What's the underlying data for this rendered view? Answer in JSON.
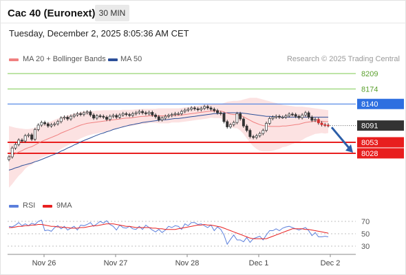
{
  "header": {
    "title": "Cac 40 (Euronext)",
    "interval": "30 MIN"
  },
  "timestamp": "Tuesday, December 2, 2025 8:05:36 AM CET",
  "legend": {
    "ma20": {
      "label": "MA 20 + Bollinger Bands",
      "color": "#f08080"
    },
    "ma50": {
      "label": "MA 50",
      "color": "#2c4f99"
    },
    "rsi": {
      "label": "RSI",
      "color": "#5b7fdc"
    },
    "nine_ma": {
      "label": "9MA",
      "color": "#e82020"
    }
  },
  "credit": "Research © 2025 Trading Central",
  "chart_data": [
    {
      "type": "line",
      "x_tick_labels": [
        "Nov 26",
        "Nov 27",
        "Nov 28",
        "Dec 1",
        "Dec 2"
      ],
      "levels": [
        {
          "value": 8209,
          "label": "8209",
          "kind": "resistance",
          "color": "#7dc94f"
        },
        {
          "value": 8174,
          "label": "8174",
          "kind": "resistance",
          "color": "#7dc94f"
        },
        {
          "value": 8140,
          "label": "8140",
          "kind": "pivot",
          "color": "#2e6fe0"
        },
        {
          "value": 8091,
          "label": "8091",
          "kind": "last",
          "color": "#333333"
        },
        {
          "value": 8053,
          "label": "8053",
          "kind": "support",
          "color": "#e81e1e"
        },
        {
          "value": 8028,
          "label": "8028",
          "kind": "support",
          "color": "#e81e1e"
        }
      ],
      "forecast": {
        "direction": "down",
        "from": 8087,
        "to": 8028,
        "color": "#2c5ea8"
      },
      "close": [
        8020,
        8040,
        8048,
        8058,
        8056,
        8068,
        8070,
        8060,
        8082,
        8092,
        8098,
        8095,
        8090,
        8093,
        8095,
        8100,
        8108,
        8110,
        8106,
        8112,
        8115,
        8118,
        8116,
        8120,
        8122,
        8115,
        8108,
        8113,
        8112,
        8110,
        8105,
        8112,
        8114,
        8110,
        8115,
        8118,
        8116,
        8114,
        8118,
        8120,
        8123,
        8120,
        8118,
        8121,
        8115,
        8111,
        8104,
        8108,
        8112,
        8114,
        8116,
        8118,
        8118,
        8123,
        8126,
        8128,
        8131,
        8129,
        8127,
        8130,
        8134,
        8131,
        8128,
        8125,
        8120,
        8118,
        8100,
        8088,
        8093,
        8098,
        8118,
        8106,
        8090,
        8080,
        8066,
        8064,
        8068,
        8073,
        8080,
        8096,
        8107,
        8110,
        8112,
        8110,
        8110,
        8113,
        8117,
        8116,
        8112,
        8109,
        8115,
        8120,
        8110,
        8103,
        8105,
        8097,
        8093,
        8092,
        8091
      ],
      "ma20": [
        8020,
        8023,
        8027,
        8031,
        8034,
        8038,
        8041,
        8043,
        8047,
        8051,
        8055,
        8058,
        8061,
        8064,
        8067,
        8070,
        8074,
        8077,
        8080,
        8083,
        8086,
        8089,
        8092,
        8094,
        8096,
        8097,
        8098,
        8099,
        8100,
        8101,
        8102,
        8103,
        8104,
        8105,
        8106,
        8107,
        8108,
        8108,
        8109,
        8110,
        8111,
        8112,
        8112,
        8113,
        8113,
        8113,
        8113,
        8113,
        8113,
        8113,
        8114,
        8114,
        8114,
        8115,
        8116,
        8117,
        8118,
        8119,
        8120,
        8121,
        8122,
        8123,
        8124,
        8124,
        8124,
        8124,
        8122,
        8119,
        8117,
        8116,
        8116,
        8114,
        8111,
        8107,
        8103,
        8099,
        8096,
        8093,
        8091,
        8090,
        8089,
        8089,
        8089,
        8089,
        8090,
        8090,
        8091,
        8092,
        8093,
        8094,
        8096,
        8098,
        8099,
        8100,
        8101,
        8101,
        8101,
        8100,
        8100
      ],
      "bb_upper": [
        8090,
        8088,
        8086,
        8085,
        8084,
        8083,
        8083,
        8084,
        8086,
        8089,
        8092,
        8095,
        8098,
        8101,
        8104,
        8107,
        8110,
        8112,
        8114,
        8116,
        8118,
        8120,
        8122,
        8123,
        8124,
        8124,
        8124,
        8125,
        8125,
        8126,
        8126,
        8126,
        8126,
        8126,
        8126,
        8127,
        8127,
        8127,
        8127,
        8128,
        8128,
        8129,
        8129,
        8129,
        8129,
        8129,
        8130,
        8130,
        8130,
        8130,
        8130,
        8130,
        8130,
        8131,
        8132,
        8133,
        8134,
        8135,
        8136,
        8137,
        8138,
        8139,
        8139,
        8140,
        8140,
        8140,
        8142,
        8145,
        8146,
        8147,
        8147,
        8148,
        8150,
        8152,
        8154,
        8154,
        8154,
        8152,
        8150,
        8148,
        8146,
        8144,
        8142,
        8140,
        8138,
        8137,
        8136,
        8135,
        8134,
        8134,
        8134,
        8133,
        8132,
        8131,
        8130,
        8129,
        8128,
        8127,
        8126
      ],
      "bb_lower": [
        7950,
        7958,
        7968,
        7977,
        7984,
        7993,
        7999,
        8002,
        8008,
        8013,
        8018,
        8021,
        8024,
        8027,
        8030,
        8033,
        8038,
        8042,
        8046,
        8050,
        8054,
        8058,
        8062,
        8065,
        8068,
        8070,
        8072,
        8073,
        8075,
        8076,
        8078,
        8080,
        8082,
        8084,
        8086,
        8087,
        8089,
        8089,
        8091,
        8092,
        8094,
        8095,
        8095,
        8097,
        8097,
        8097,
        8096,
        8096,
        8096,
        8096,
        8098,
        8098,
        8098,
        8099,
        8100,
        8101,
        8102,
        8103,
        8104,
        8105,
        8106,
        8107,
        8109,
        8108,
        8108,
        8108,
        8102,
        8093,
        8088,
        8085,
        8085,
        8080,
        8072,
        8062,
        8052,
        8044,
        8038,
        8034,
        8032,
        8032,
        8032,
        8034,
        8036,
        8038,
        8042,
        8043,
        8046,
        8049,
        8052,
        8054,
        8058,
        8063,
        8066,
        8069,
        8072,
        8073,
        8074,
        8073,
        8074
      ],
      "ma50": [
        7990,
        7992,
        7995,
        7997,
        8000,
        8002,
        8004,
        8006,
        8009,
        8011,
        8014,
        8017,
        8020,
        8023,
        8026,
        8029,
        8033,
        8036,
        8040,
        8043,
        8047,
        8050,
        8054,
        8057,
        8060,
        8063,
        8066,
        8069,
        8072,
        8074,
        8077,
        8079,
        8082,
        8084,
        8086,
        8088,
        8090,
        8092,
        8093,
        8095,
        8096,
        8098,
        8099,
        8100,
        8101,
        8102,
        8103,
        8104,
        8104,
        8105,
        8106,
        8107,
        8107,
        8108,
        8109,
        8110,
        8111,
        8112,
        8113,
        8114,
        8115,
        8116,
        8117,
        8118,
        8118,
        8119,
        8119,
        8120,
        8120,
        8120,
        8120,
        8120,
        8119,
        8118,
        8117,
        8116,
        8115,
        8114,
        8113,
        8112,
        8112,
        8111,
        8111,
        8111,
        8110,
        8110,
        8110,
        8110,
        8110,
        8110,
        8110,
        8110,
        8110,
        8110,
        8110,
        8110,
        8110,
        8110,
        8110
      ]
    },
    {
      "type": "line",
      "y_tick_labels": [
        "70",
        "50",
        "30"
      ],
      "series": [
        {
          "name": "RSI",
          "values": [
            62,
            61,
            64,
            68,
            63,
            66,
            63,
            67,
            65,
            70,
            72,
            55,
            56,
            54,
            60,
            63,
            58,
            62,
            56,
            59,
            62,
            56,
            64,
            63,
            65,
            68,
            62,
            66,
            70,
            67,
            71,
            65,
            62,
            56,
            64,
            60,
            59,
            62,
            58,
            57,
            62,
            57,
            64,
            60,
            56,
            53,
            57,
            52,
            56,
            62,
            60,
            63,
            62,
            57,
            66,
            63,
            68,
            68,
            65,
            66,
            63,
            60,
            64,
            55,
            61,
            57,
            48,
            33,
            41,
            48,
            40,
            40,
            37,
            44,
            36,
            42,
            44,
            46,
            40,
            48,
            55,
            55,
            58,
            55,
            59,
            61,
            62,
            60,
            58,
            56,
            58,
            60,
            55,
            47,
            52,
            45,
            45,
            46,
            45
          ]
        },
        {
          "name": "9MA",
          "values": [
            60,
            60,
            61,
            62,
            62,
            63,
            63,
            64,
            64,
            65,
            65,
            64,
            63,
            62,
            62,
            61,
            61,
            60,
            60,
            59,
            59,
            59,
            60,
            60,
            61,
            62,
            63,
            63,
            64,
            65,
            66,
            66,
            66,
            65,
            64,
            63,
            62,
            62,
            61,
            60,
            60,
            60,
            60,
            60,
            59,
            59,
            58,
            58,
            57,
            57,
            57,
            57,
            58,
            59,
            60,
            61,
            62,
            63,
            64,
            64,
            65,
            64,
            64,
            63,
            62,
            61,
            59,
            57,
            55,
            53,
            51,
            49,
            47,
            45,
            43,
            42,
            42,
            42,
            42,
            42,
            44,
            46,
            48,
            50,
            52,
            54,
            56,
            58,
            58,
            58,
            58,
            57,
            57,
            56,
            55,
            54,
            53,
            52,
            51
          ]
        }
      ]
    }
  ]
}
